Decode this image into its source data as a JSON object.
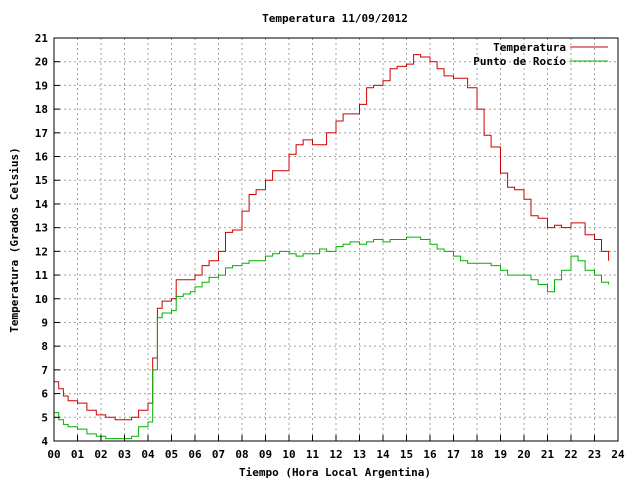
{
  "chart_data": {
    "type": "line",
    "title": "Temperatura 11/09/2012",
    "xlabel": "Tiempo (Hora Local Argentina)",
    "ylabel": "Temperatura (Grados Celsius)",
    "xlim": [
      0,
      24
    ],
    "ylim": [
      4,
      21
    ],
    "x_ticks": [
      "00",
      "01",
      "02",
      "03",
      "04",
      "05",
      "06",
      "07",
      "08",
      "09",
      "10",
      "11",
      "12",
      "13",
      "14",
      "15",
      "16",
      "17",
      "18",
      "19",
      "20",
      "21",
      "22",
      "23",
      "24"
    ],
    "y_ticks": [
      4,
      5,
      6,
      7,
      8,
      9,
      10,
      11,
      12,
      13,
      14,
      15,
      16,
      17,
      18,
      19,
      20,
      21
    ],
    "grid": true,
    "legend_position": "top-right",
    "colors": {
      "temperatura": "#cc0000",
      "punto_rocio": "#00b000"
    },
    "series": [
      {
        "name": "Temperatura",
        "x": [
          0,
          0.2,
          0.4,
          0.6,
          1,
          1.4,
          1.8,
          2.2,
          2.6,
          3,
          3.3,
          3.6,
          4.0,
          4.2,
          4.4,
          4.6,
          4.8,
          5.0,
          5.2,
          5.5,
          5.8,
          6.0,
          6.3,
          6.6,
          7.0,
          7.3,
          7.6,
          8.0,
          8.3,
          8.6,
          9.0,
          9.3,
          9.6,
          10.0,
          10.3,
          10.6,
          11.0,
          11.3,
          11.6,
          12.0,
          12.3,
          12.6,
          13.0,
          13.3,
          13.6,
          14.0,
          14.3,
          14.6,
          15.0,
          15.3,
          15.6,
          16.0,
          16.3,
          16.6,
          17.0,
          17.3,
          17.6,
          18.0,
          18.3,
          18.6,
          19.0,
          19.3,
          19.6,
          20.0,
          20.3,
          20.6,
          21.0,
          21.3,
          21.6,
          22.0,
          22.3,
          22.6,
          23.0,
          23.3,
          23.6
        ],
        "values": [
          6.5,
          6.2,
          5.9,
          5.7,
          5.6,
          5.3,
          5.1,
          5.0,
          4.9,
          4.9,
          5.0,
          5.3,
          5.6,
          7.5,
          9.6,
          9.9,
          9.9,
          10.0,
          10.8,
          10.8,
          10.8,
          11.0,
          11.4,
          11.6,
          12.0,
          12.8,
          12.9,
          13.7,
          14.4,
          14.6,
          15.0,
          15.4,
          15.4,
          16.1,
          16.5,
          16.7,
          16.5,
          16.5,
          17.0,
          17.5,
          17.8,
          17.8,
          18.2,
          18.9,
          19.0,
          19.2,
          19.7,
          19.8,
          19.9,
          20.3,
          20.2,
          20.0,
          19.7,
          19.4,
          19.3,
          19.3,
          18.9,
          18.0,
          16.9,
          16.4,
          15.3,
          14.7,
          14.6,
          14.2,
          13.5,
          13.4,
          13.0,
          13.1,
          13.0,
          13.2,
          13.2,
          12.7,
          12.5,
          12.0,
          11.6
        ]
      },
      {
        "name": "Punto de Rocío",
        "x": [
          0,
          0.2,
          0.4,
          0.6,
          1,
          1.4,
          1.8,
          2.2,
          2.6,
          3,
          3.3,
          3.6,
          4.0,
          4.2,
          4.4,
          4.6,
          4.8,
          5.0,
          5.2,
          5.5,
          5.8,
          6.0,
          6.3,
          6.6,
          7.0,
          7.3,
          7.6,
          8.0,
          8.3,
          8.6,
          9.0,
          9.3,
          9.6,
          10.0,
          10.3,
          10.6,
          11.0,
          11.3,
          11.6,
          12.0,
          12.3,
          12.6,
          13.0,
          13.3,
          13.6,
          14.0,
          14.3,
          14.6,
          15.0,
          15.3,
          15.6,
          16.0,
          16.3,
          16.6,
          17.0,
          17.3,
          17.6,
          18.0,
          18.3,
          18.6,
          19.0,
          19.3,
          19.6,
          20.0,
          20.3,
          20.6,
          21.0,
          21.3,
          21.6,
          22.0,
          22.3,
          22.6,
          23.0,
          23.3,
          23.6
        ],
        "values": [
          5.2,
          4.9,
          4.7,
          4.6,
          4.5,
          4.3,
          4.2,
          4.1,
          4.1,
          4.1,
          4.2,
          4.6,
          4.8,
          7.0,
          9.2,
          9.4,
          9.4,
          9.5,
          10.1,
          10.2,
          10.3,
          10.5,
          10.7,
          10.9,
          11.0,
          11.3,
          11.4,
          11.5,
          11.6,
          11.6,
          11.8,
          11.9,
          12.0,
          11.9,
          11.8,
          11.9,
          11.9,
          12.1,
          12.0,
          12.2,
          12.3,
          12.4,
          12.3,
          12.4,
          12.5,
          12.4,
          12.5,
          12.5,
          12.6,
          12.6,
          12.5,
          12.3,
          12.1,
          12.0,
          11.8,
          11.6,
          11.5,
          11.5,
          11.5,
          11.4,
          11.2,
          11.0,
          11.0,
          11.0,
          10.8,
          10.6,
          10.3,
          10.8,
          11.2,
          11.8,
          11.6,
          11.2,
          11.0,
          10.7,
          10.6
        ]
      }
    ]
  }
}
